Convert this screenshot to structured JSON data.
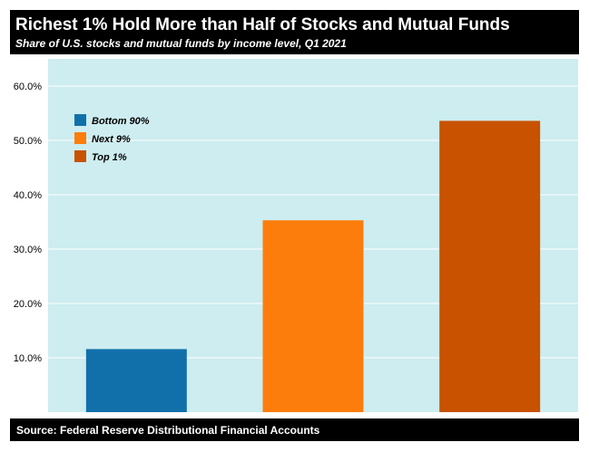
{
  "header": {
    "title": "Richest 1% Hold More than Half of Stocks and Mutual Funds",
    "subtitle": "Share of U.S. stocks and mutual funds by income level, Q1 2021"
  },
  "footer": {
    "source": "Source: Federal Reserve Distributional Financial Accounts"
  },
  "chart_data": {
    "type": "bar",
    "categories": [
      "Bottom 90%",
      "Next 9%",
      "Top 1%"
    ],
    "values": [
      11.6,
      35.3,
      53.6
    ],
    "colors": [
      "#1170aa",
      "#fc7d0b",
      "#c85200"
    ],
    "plot_background": "#cdedf0",
    "yticks": [
      10,
      20,
      30,
      40,
      50,
      60
    ],
    "ytick_labels": [
      "10.0%",
      "20.0%",
      "30.0%",
      "40.0%",
      "50.0%",
      "60.0%"
    ],
    "ylim": [
      0,
      65
    ],
    "grid": true,
    "legend": {
      "placement": "top-left",
      "entries": [
        "Bottom 90%",
        "Next 9%",
        "Top 1%"
      ]
    }
  }
}
